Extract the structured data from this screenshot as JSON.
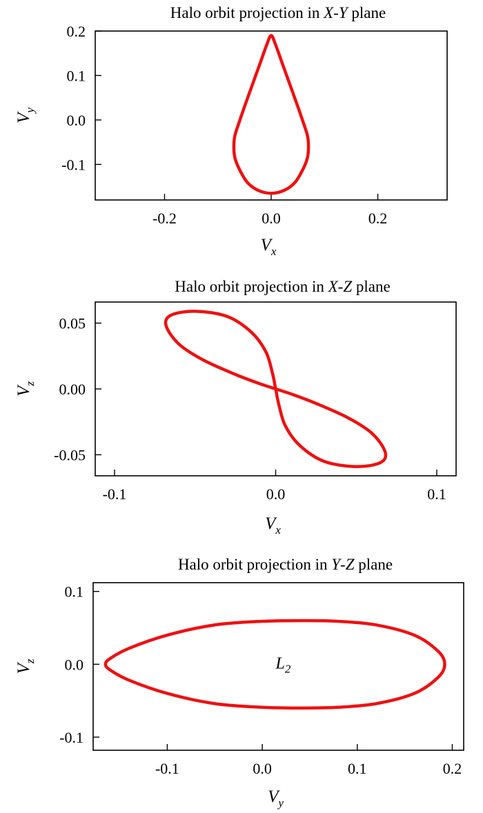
{
  "colors": {
    "curve": "#ee1111",
    "axis": "#000000"
  },
  "chart_data": [
    {
      "type": "line",
      "title_parts": [
        "Halo orbit projection in ",
        "X",
        "-",
        "Y",
        " plane"
      ],
      "xlabel": {
        "main": "V",
        "sub": "x"
      },
      "ylabel": {
        "main": "V",
        "sub": "y"
      },
      "xlim": [
        -0.33,
        0.33
      ],
      "ylim": [
        -0.18,
        0.2
      ],
      "xticks": [
        -0.2,
        0.0,
        0.2
      ],
      "xtick_labels": [
        "-0.2",
        "0.0",
        "0.2"
      ],
      "yticks": [
        -0.1,
        0.0,
        0.1,
        0.2
      ],
      "ytick_labels": [
        "-0.1",
        "0.0",
        "0.1",
        "0.2"
      ],
      "series": [
        {
          "closed": true,
          "x": [
            0.0,
            0.008,
            0.02,
            0.035,
            0.05,
            0.06,
            0.068,
            0.07,
            0.068,
            0.06,
            0.045,
            0.025,
            0.0,
            -0.025,
            -0.045,
            -0.06,
            -0.068,
            -0.07,
            -0.068,
            -0.06,
            -0.05,
            -0.035,
            -0.02,
            -0.008
          ],
          "y": [
            0.19,
            0.17,
            0.13,
            0.08,
            0.03,
            -0.005,
            -0.035,
            -0.06,
            -0.085,
            -0.11,
            -0.14,
            -0.158,
            -0.165,
            -0.158,
            -0.14,
            -0.11,
            -0.085,
            -0.06,
            -0.035,
            -0.005,
            0.03,
            0.08,
            0.13,
            0.17
          ]
        }
      ]
    },
    {
      "type": "line",
      "title_parts": [
        "Halo orbit projection in ",
        "X",
        "-",
        "Z",
        " plane"
      ],
      "xlabel": {
        "main": "V",
        "sub": "x"
      },
      "ylabel": {
        "main": "V",
        "sub": "z"
      },
      "xlim": [
        -0.112,
        0.112
      ],
      "ylim": [
        -0.066,
        0.066
      ],
      "xticks": [
        -0.1,
        0.0,
        0.1
      ],
      "xtick_labels": [
        "-0.1",
        "0.0",
        "0.1"
      ],
      "yticks": [
        -0.05,
        0.0,
        0.05
      ],
      "ytick_labels": [
        "-0.05",
        "0.00",
        "0.05"
      ],
      "series": [
        {
          "closed": true,
          "x": [
            0.0,
            -0.01,
            -0.025,
            -0.045,
            -0.06,
            -0.068,
            -0.065,
            -0.05,
            -0.03,
            -0.015,
            -0.006,
            -0.002,
            0.0,
            0.002,
            0.006,
            0.015,
            0.03,
            0.05,
            0.065,
            0.068,
            0.06,
            0.045,
            0.025,
            0.01
          ],
          "y": [
            0.0,
            0.004,
            0.011,
            0.022,
            0.034,
            0.048,
            0.056,
            0.059,
            0.055,
            0.043,
            0.028,
            0.012,
            0.0,
            -0.012,
            -0.028,
            -0.043,
            -0.055,
            -0.059,
            -0.056,
            -0.048,
            -0.034,
            -0.022,
            -0.011,
            -0.004
          ]
        }
      ]
    },
    {
      "type": "line",
      "title_parts": [
        "Halo orbit projection in ",
        "Y",
        "-",
        "Z",
        " plane"
      ],
      "xlabel": {
        "main": "V",
        "sub": "y"
      },
      "ylabel": {
        "main": "V",
        "sub": "z"
      },
      "xlim": [
        -0.178,
        0.212
      ],
      "ylim": [
        -0.118,
        0.112
      ],
      "xticks": [
        -0.1,
        0.0,
        0.1,
        0.2
      ],
      "xtick_labels": [
        "-0.1",
        "0.0",
        "0.1",
        "0.2"
      ],
      "yticks": [
        -0.1,
        0.0,
        0.1
      ],
      "ytick_labels": [
        "-0.1",
        "0.0",
        "0.1"
      ],
      "annotation": {
        "text_main": "L",
        "text_sub": "2",
        "x": 0.022,
        "y": 0.0
      },
      "series": [
        {
          "closed": true,
          "x": [
            0.192,
            0.185,
            0.16,
            0.12,
            0.08,
            0.045,
            0.0,
            -0.05,
            -0.1,
            -0.14,
            -0.16,
            -0.165,
            -0.16,
            -0.14,
            -0.1,
            -0.05,
            0.0,
            0.045,
            0.08,
            0.12,
            0.16,
            0.185
          ],
          "y": [
            0.0,
            0.018,
            0.04,
            0.054,
            0.059,
            0.06,
            0.059,
            0.054,
            0.04,
            0.022,
            0.008,
            0.0,
            -0.008,
            -0.022,
            -0.04,
            -0.054,
            -0.059,
            -0.06,
            -0.059,
            -0.054,
            -0.04,
            -0.018
          ]
        }
      ]
    }
  ]
}
